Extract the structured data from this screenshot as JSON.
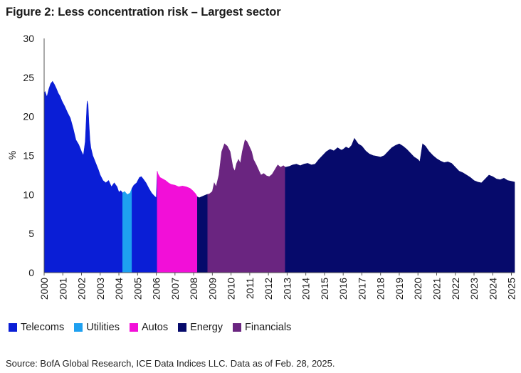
{
  "title": "Figure 2: Less concentration risk – Largest sector",
  "source": "Source: BofA Global Research, ICE Data Indices LLC. Data as of Feb. 28, 2025.",
  "chart_data": {
    "type": "area",
    "title": "Figure 2: Less concentration risk – Largest sector",
    "xlabel": "",
    "ylabel": "%",
    "ylim": [
      0,
      30
    ],
    "xlim": [
      2000,
      2025.17
    ],
    "yticks": [
      "0",
      "5",
      "10",
      "15",
      "20",
      "25",
      "30"
    ],
    "xticks": [
      "2000",
      "2001",
      "2002",
      "2003",
      "2004",
      "2005",
      "2006",
      "2007",
      "2008",
      "2009",
      "2010",
      "2011",
      "2012",
      "2013",
      "2014",
      "2015",
      "2016",
      "2017",
      "2018",
      "2019",
      "2020",
      "2021",
      "2022",
      "2023",
      "2024",
      "2025"
    ],
    "grid": false,
    "legend_position": "bottom-left",
    "legend": [
      {
        "name": "Telecoms",
        "color": "#0a1ed6"
      },
      {
        "name": "Utilities",
        "color": "#1ea0f0"
      },
      {
        "name": "Autos",
        "color": "#f20fd8"
      },
      {
        "name": "Energy",
        "color": "#060a6b"
      },
      {
        "name": "Financials",
        "color": "#6a2580"
      }
    ],
    "regimes": [
      {
        "sector": "Telecoms",
        "start": 2000.0,
        "end": 2004.2
      },
      {
        "sector": "Utilities",
        "start": 2004.2,
        "end": 2004.7
      },
      {
        "sector": "Telecoms",
        "start": 2004.7,
        "end": 2006.05
      },
      {
        "sector": "Autos",
        "start": 2006.05,
        "end": 2008.2
      },
      {
        "sector": "Energy",
        "start": 2008.2,
        "end": 2008.75
      },
      {
        "sector": "Financials",
        "start": 2008.75,
        "end": 2012.9
      },
      {
        "sector": "Energy",
        "start": 2012.9,
        "end": 2025.17
      }
    ],
    "series": [
      {
        "name": "Largest sector",
        "x": [
          2000.0,
          2000.05,
          2000.15,
          2000.25,
          2000.35,
          2000.45,
          2000.55,
          2000.65,
          2000.75,
          2000.85,
          2000.95,
          2001.1,
          2001.25,
          2001.4,
          2001.55,
          2001.7,
          2001.85,
          2002.0,
          2002.1,
          2002.2,
          2002.3,
          2002.35,
          2002.4,
          2002.45,
          2002.5,
          2002.6,
          2002.75,
          2002.9,
          2003.0,
          2003.15,
          2003.3,
          2003.45,
          2003.6,
          2003.75,
          2003.9,
          2004.0,
          2004.1,
          2004.2,
          2004.3,
          2004.45,
          2004.6,
          2004.7,
          2004.8,
          2004.95,
          2005.1,
          2005.2,
          2005.3,
          2005.45,
          2005.6,
          2005.75,
          2005.9,
          2006.0,
          2006.05,
          2006.1,
          2006.2,
          2006.35,
          2006.5,
          2006.65,
          2006.8,
          2007.0,
          2007.2,
          2007.4,
          2007.6,
          2007.8,
          2007.95,
          2008.1,
          2008.2,
          2008.3,
          2008.5,
          2008.7,
          2008.85,
          2009.0,
          2009.1,
          2009.2,
          2009.35,
          2009.5,
          2009.65,
          2009.8,
          2009.95,
          2010.1,
          2010.2,
          2010.3,
          2010.4,
          2010.5,
          2010.6,
          2010.75,
          2010.85,
          2010.95,
          2011.1,
          2011.2,
          2011.35,
          2011.5,
          2011.6,
          2011.75,
          2011.9,
          2012.05,
          2012.2,
          2012.35,
          2012.5,
          2012.65,
          2012.8,
          2012.9,
          2013.1,
          2013.3,
          2013.5,
          2013.7,
          2013.9,
          2014.1,
          2014.3,
          2014.5,
          2014.7,
          2014.9,
          2015.1,
          2015.3,
          2015.5,
          2015.7,
          2015.9,
          2016.0,
          2016.15,
          2016.3,
          2016.45,
          2016.6,
          2016.8,
          2017.0,
          2017.2,
          2017.4,
          2017.6,
          2017.8,
          2018.0,
          2018.2,
          2018.4,
          2018.6,
          2018.8,
          2019.0,
          2019.2,
          2019.4,
          2019.6,
          2019.8,
          2020.0,
          2020.1,
          2020.25,
          2020.4,
          2020.6,
          2020.8,
          2021.0,
          2021.2,
          2021.4,
          2021.6,
          2021.8,
          2022.0,
          2022.2,
          2022.4,
          2022.6,
          2022.8,
          2023.0,
          2023.2,
          2023.4,
          2023.6,
          2023.8,
          2024.0,
          2024.2,
          2024.4,
          2024.6,
          2024.8,
          2025.0,
          2025.17
        ],
        "y": [
          23.0,
          23.2,
          22.5,
          23.5,
          24.2,
          24.5,
          24.1,
          23.6,
          23.0,
          22.6,
          22.0,
          21.3,
          20.5,
          19.8,
          18.5,
          17.0,
          16.4,
          15.5,
          15.0,
          16.8,
          22.0,
          21.5,
          19.0,
          17.0,
          16.0,
          15.0,
          14.1,
          13.2,
          12.5,
          11.8,
          11.5,
          11.8,
          11.0,
          11.5,
          11.0,
          10.3,
          10.5,
          10.2,
          10.4,
          10.0,
          10.2,
          10.8,
          11.2,
          11.5,
          12.2,
          12.3,
          12.0,
          11.5,
          10.8,
          10.2,
          9.8,
          9.6,
          13.0,
          12.6,
          12.2,
          12.0,
          11.8,
          11.5,
          11.3,
          11.2,
          11.0,
          11.1,
          11.0,
          10.8,
          10.5,
          10.1,
          9.7,
          9.6,
          9.8,
          10.0,
          10.1,
          10.4,
          11.5,
          11.0,
          12.5,
          15.5,
          16.5,
          16.2,
          15.5,
          13.5,
          13.0,
          14.0,
          14.5,
          14.0,
          15.5,
          17.0,
          16.8,
          16.3,
          15.5,
          14.5,
          13.8,
          13.0,
          12.5,
          12.7,
          12.4,
          12.3,
          12.6,
          13.2,
          13.8,
          13.5,
          13.7,
          13.5,
          13.6,
          13.8,
          13.9,
          13.7,
          13.9,
          14.0,
          13.8,
          13.9,
          14.5,
          15.0,
          15.5,
          15.8,
          15.6,
          16.0,
          15.7,
          15.8,
          16.1,
          15.9,
          16.3,
          17.2,
          16.5,
          16.2,
          15.6,
          15.2,
          15.0,
          14.9,
          14.8,
          15.0,
          15.5,
          16.0,
          16.3,
          16.5,
          16.2,
          15.8,
          15.3,
          14.8,
          14.5,
          14.2,
          16.5,
          16.2,
          15.5,
          15.0,
          14.6,
          14.3,
          14.1,
          14.2,
          14.0,
          13.5,
          13.0,
          12.8,
          12.5,
          12.2,
          11.8,
          11.6,
          11.5,
          12.0,
          12.5,
          12.3,
          12.0,
          11.9,
          12.1,
          11.8,
          11.7,
          11.6
        ]
      }
    ]
  }
}
